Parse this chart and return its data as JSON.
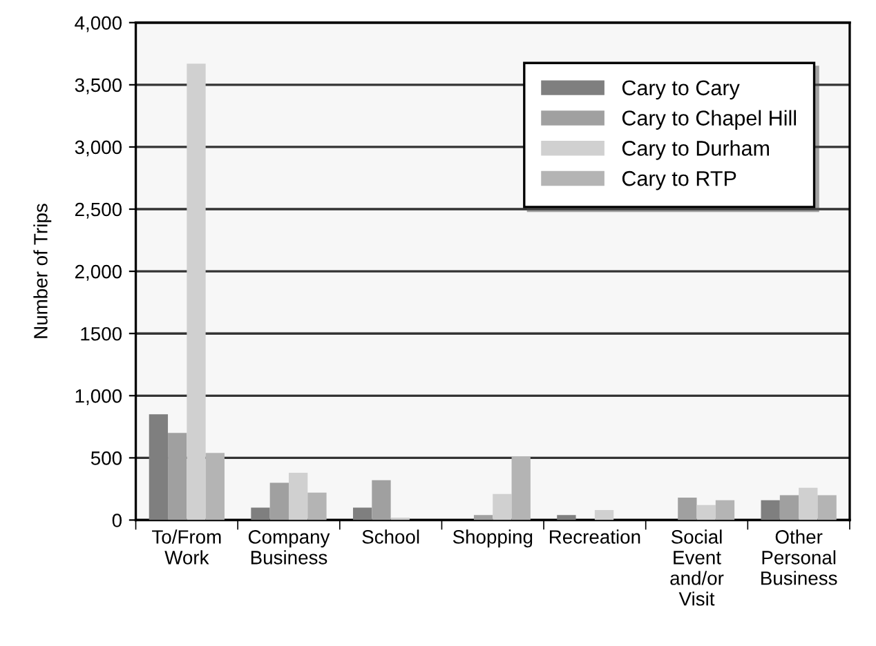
{
  "chart_data": {
    "type": "bar",
    "ylabel": "Number of Trips",
    "categories": [
      "To/From\nWork",
      "Company\nBusiness",
      "School",
      "Shopping",
      "Recreation",
      "Social\nEvent\nand/or\nVisit",
      "Other\nPersonal\nBusiness"
    ],
    "series": [
      {
        "name": "Cary to Cary",
        "color": "#7f7f7f",
        "values": [
          850,
          100,
          100,
          0,
          40,
          0,
          160
        ]
      },
      {
        "name": "Cary to Chapel Hill",
        "color": "#a0a0a0",
        "values": [
          700,
          300,
          320,
          40,
          0,
          180,
          200
        ]
      },
      {
        "name": "Cary to Durham",
        "color": "#d0d0d0",
        "values": [
          3670,
          380,
          20,
          210,
          80,
          120,
          260
        ]
      },
      {
        "name": "Cary to RTP",
        "color": "#b4b4b4",
        "values": [
          540,
          220,
          0,
          510,
          0,
          160,
          200
        ]
      }
    ],
    "ylim": [
      0,
      4000
    ],
    "yticks": [
      0,
      500,
      {
        "value": 1000,
        "label": "1,000"
      },
      {
        "value": 1500,
        "label": "1500"
      },
      {
        "value": 2000,
        "label": "2,000"
      },
      {
        "value": 2500,
        "label": "2,500"
      },
      {
        "value": 3000,
        "label": "3,000"
      },
      {
        "value": 3500,
        "label": "3,500"
      },
      {
        "value": 4000,
        "label": "4,000"
      }
    ],
    "grid": "y",
    "legend": "top right"
  }
}
